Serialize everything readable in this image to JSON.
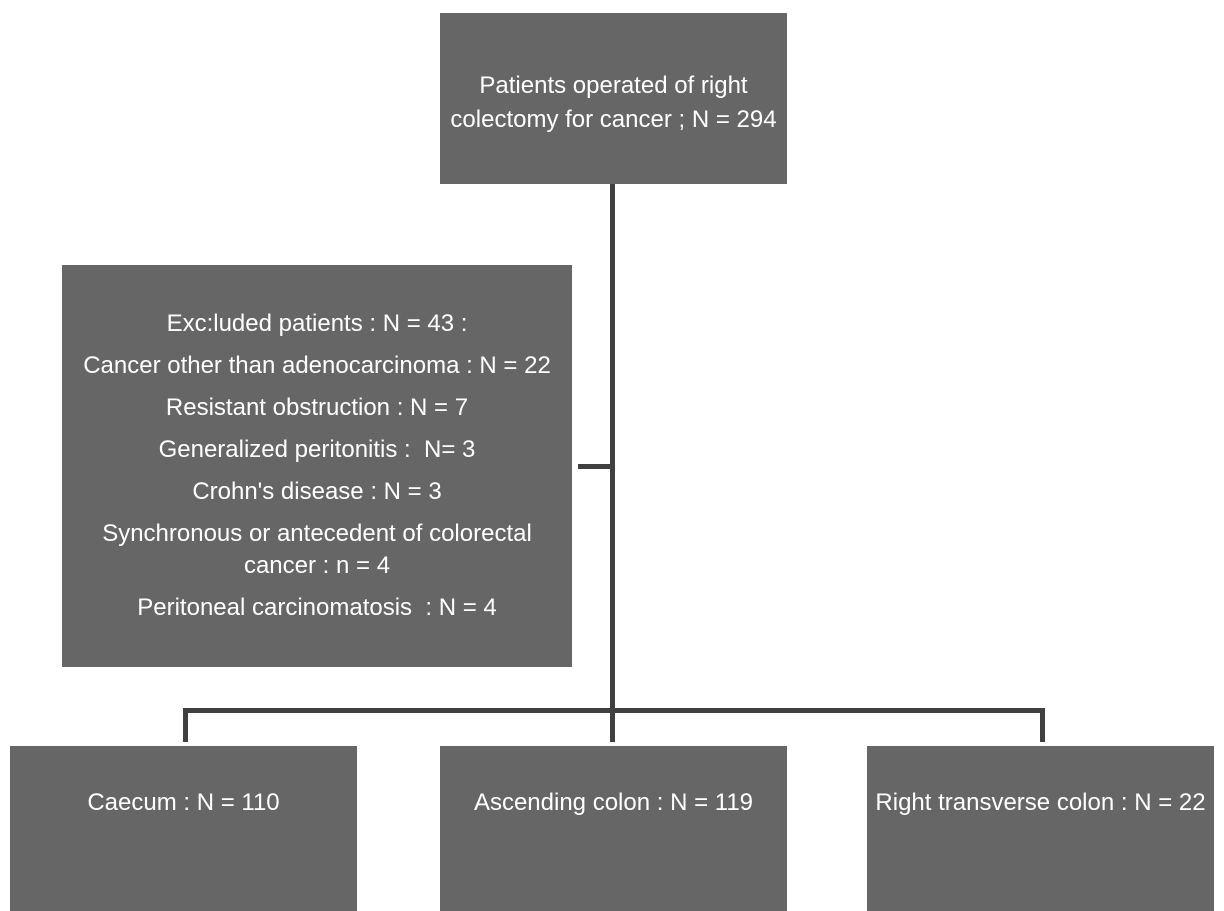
{
  "colors": {
    "background": "#ffffff",
    "box_fill": "#666666",
    "box_text": "#ffffff",
    "connector": "#404040"
  },
  "flowchart": {
    "root": {
      "text": "Patients operated of right colectomy for cancer ; N = 294"
    },
    "excluded": {
      "heading": "Exc:luded patients : N = 43 :",
      "reasons": [
        "Cancer other than adenocarcinoma : N = 22",
        "Resistant obstruction : N = 7",
        "Generalized peritonitis :  N= 3",
        "Crohn's disease : N = 3",
        "Synchronous or antecedent of colorectal cancer : n = 4",
        "Peritoneal carcinomatosis  : N = 4"
      ]
    },
    "groups": [
      {
        "text": "Caecum : N = 110"
      },
      {
        "text": "Ascending colon : N = 119"
      },
      {
        "text": "Right transverse colon : N = 22"
      }
    ]
  }
}
